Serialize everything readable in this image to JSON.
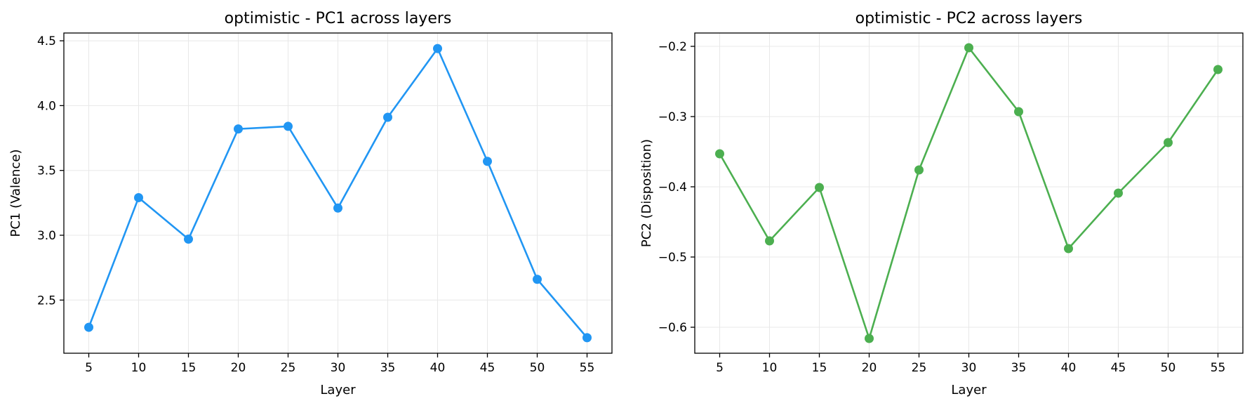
{
  "chart_data": [
    {
      "type": "line",
      "title": "optimistic - PC1 across layers",
      "xlabel": "Layer",
      "ylabel": "PC1 (Valence)",
      "x": [
        5,
        10,
        15,
        20,
        25,
        30,
        35,
        40,
        45,
        50,
        55
      ],
      "series": [
        {
          "values": [
            2.29,
            3.29,
            2.97,
            3.82,
            3.84,
            3.21,
            3.91,
            4.44,
            3.57,
            2.66,
            2.21
          ],
          "color": "#2196F3"
        }
      ],
      "x_ticks": [
        5,
        10,
        15,
        20,
        25,
        30,
        35,
        40,
        45,
        50,
        55
      ],
      "x_tick_labels": [
        "5",
        "10",
        "15",
        "20",
        "25",
        "30",
        "35",
        "40",
        "45",
        "50",
        "55"
      ],
      "y_ticks": [
        2.5,
        3.0,
        3.5,
        4.0,
        4.5
      ],
      "y_tick_labels": [
        "2.5",
        "3.0",
        "3.5",
        "4.0",
        "4.5"
      ],
      "xlim": [
        2.5,
        57.5
      ],
      "ylim": [
        2.09,
        4.56
      ],
      "grid": true,
      "marker": "circle"
    },
    {
      "type": "line",
      "title": "optimistic - PC2 across layers",
      "xlabel": "Layer",
      "ylabel": "PC2 (Disposition)",
      "x": [
        5,
        10,
        15,
        20,
        25,
        30,
        35,
        40,
        45,
        50,
        55
      ],
      "series": [
        {
          "values": [
            -0.353,
            -0.477,
            -0.401,
            -0.616,
            -0.376,
            -0.202,
            -0.293,
            -0.488,
            -0.409,
            -0.337,
            -0.233
          ],
          "color": "#4CAF50"
        }
      ],
      "x_ticks": [
        5,
        10,
        15,
        20,
        25,
        30,
        35,
        40,
        45,
        50,
        55
      ],
      "x_tick_labels": [
        "5",
        "10",
        "15",
        "20",
        "25",
        "30",
        "35",
        "40",
        "45",
        "50",
        "55"
      ],
      "y_ticks": [
        -0.6,
        -0.5,
        -0.4,
        -0.3,
        -0.2
      ],
      "y_tick_labels": [
        "−0.6",
        "−0.5",
        "−0.4",
        "−0.3",
        "−0.2"
      ],
      "xlim": [
        2.5,
        57.5
      ],
      "ylim": [
        -0.637,
        -0.181
      ],
      "grid": true,
      "marker": "circle"
    }
  ]
}
